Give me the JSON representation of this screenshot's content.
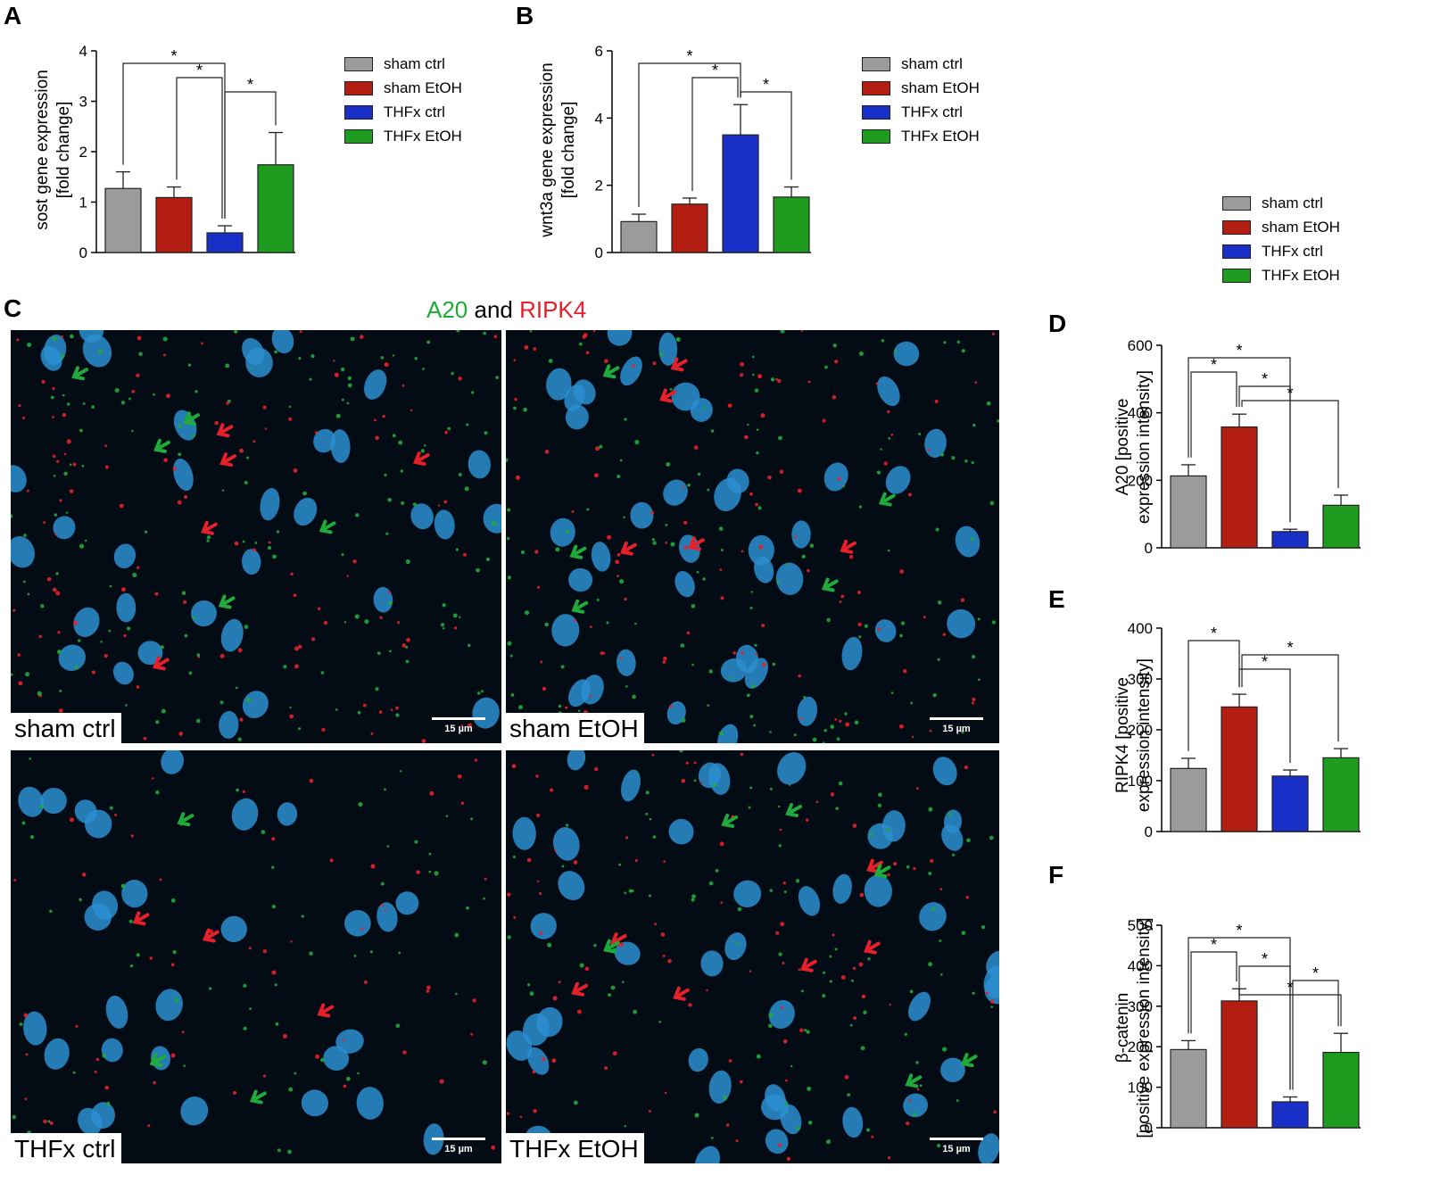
{
  "panel_labels": [
    "A",
    "B",
    "C",
    "D",
    "E",
    "F"
  ],
  "colors": {
    "sham_ctrl": "#9b9b9b",
    "sham_EtOH": "#b21f12",
    "THFx_ctrl": "#1a2ec8",
    "THFx_EtOH": "#1f9c1f",
    "A20": "#1faa3a",
    "RIPK4": "#e4202a"
  },
  "legend": [
    "sham ctrl",
    "sham EtOH",
    "THFx ctrl",
    "THFx EtOH"
  ],
  "microscopy": {
    "title_a20": "A20",
    "title_and": " and ",
    "title_ripk4": "RIPK4",
    "scale": "15 µm",
    "panels": [
      "sham ctrl",
      "sham EtOH",
      "THFx ctrl",
      "THFx EtOH"
    ]
  },
  "chart_data": [
    {
      "panel": "A",
      "type": "bar",
      "categories": [
        "sham ctrl",
        "sham EtOH",
        "THFx ctrl",
        "THFx EtOH"
      ],
      "values": [
        1.27,
        1.09,
        0.39,
        1.74
      ],
      "errors": [
        0.33,
        0.21,
        0.14,
        0.64
      ],
      "ylabel": [
        "sost gene expression",
        "[fold change]"
      ],
      "ylim": [
        0,
        4
      ],
      "yticks": [
        0,
        1,
        2,
        3,
        4
      ],
      "significance": [
        {
          "from": 0,
          "to": 2,
          "label": "*"
        },
        {
          "from": 1,
          "to": 2,
          "label": "*"
        },
        {
          "from": 2,
          "to": 3,
          "label": "*"
        }
      ]
    },
    {
      "panel": "B",
      "type": "bar",
      "categories": [
        "sham ctrl",
        "sham EtOH",
        "THFx ctrl",
        "THFx EtOH"
      ],
      "values": [
        0.92,
        1.44,
        3.5,
        1.65
      ],
      "errors": [
        0.22,
        0.18,
        0.9,
        0.3
      ],
      "ylabel": [
        "wnt3a gene expression",
        "[fold change]"
      ],
      "ylim": [
        0,
        6
      ],
      "yticks": [
        0,
        2,
        4,
        6
      ],
      "significance": [
        {
          "from": 0,
          "to": 2,
          "label": "*"
        },
        {
          "from": 1,
          "to": 2,
          "label": "*"
        },
        {
          "from": 2,
          "to": 3,
          "label": "*"
        }
      ]
    },
    {
      "panel": "D",
      "type": "bar",
      "categories": [
        "sham ctrl",
        "sham EtOH",
        "THFx ctrl",
        "THFx EtOH"
      ],
      "values": [
        213,
        358,
        48,
        126
      ],
      "errors": [
        33,
        38,
        7,
        30
      ],
      "ylabel": [
        "A20 [positive",
        "expression intensity]"
      ],
      "ylim": [
        0,
        600
      ],
      "yticks": [
        0,
        200,
        400,
        600
      ],
      "significance": [
        {
          "from": 0,
          "to": 2,
          "label": "*"
        },
        {
          "from": 0,
          "to": 1,
          "label": "*"
        },
        {
          "from": 1,
          "to": 2,
          "label": "*"
        },
        {
          "from": 1,
          "to": 3,
          "label": "*"
        }
      ]
    },
    {
      "panel": "E",
      "type": "bar",
      "categories": [
        "sham ctrl",
        "sham EtOH",
        "THFx ctrl",
        "THFx EtOH"
      ],
      "values": [
        124,
        245,
        109,
        145
      ],
      "errors": [
        20,
        25,
        12,
        18
      ],
      "ylabel": [
        "RIPK4 [positive",
        "expression intensity]"
      ],
      "ylim": [
        0,
        400
      ],
      "yticks": [
        0,
        100,
        200,
        300,
        400
      ],
      "significance": [
        {
          "from": 0,
          "to": 1,
          "label": "*"
        },
        {
          "from": 1,
          "to": 3,
          "label": "*"
        },
        {
          "from": 1,
          "to": 2,
          "label": "*"
        }
      ]
    },
    {
      "panel": "F",
      "type": "bar",
      "categories": [
        "sham ctrl",
        "sham EtOH",
        "THFx ctrl",
        "THFx EtOH"
      ],
      "values": [
        193,
        313,
        64,
        186
      ],
      "errors": [
        22,
        30,
        12,
        47
      ],
      "ylabel": [
        "β-catenin",
        "[positive expression intensity]"
      ],
      "ylim": [
        0,
        500
      ],
      "yticks": [
        0,
        100,
        200,
        300,
        400,
        500
      ],
      "significance": [
        {
          "from": 0,
          "to": 2,
          "label": "*"
        },
        {
          "from": 0,
          "to": 1,
          "label": "*"
        },
        {
          "from": 1,
          "to": 2,
          "label": "*"
        },
        {
          "from": 2,
          "to": 3,
          "label": "*"
        },
        {
          "from": 1,
          "to": 3,
          "label": "*"
        }
      ]
    }
  ]
}
